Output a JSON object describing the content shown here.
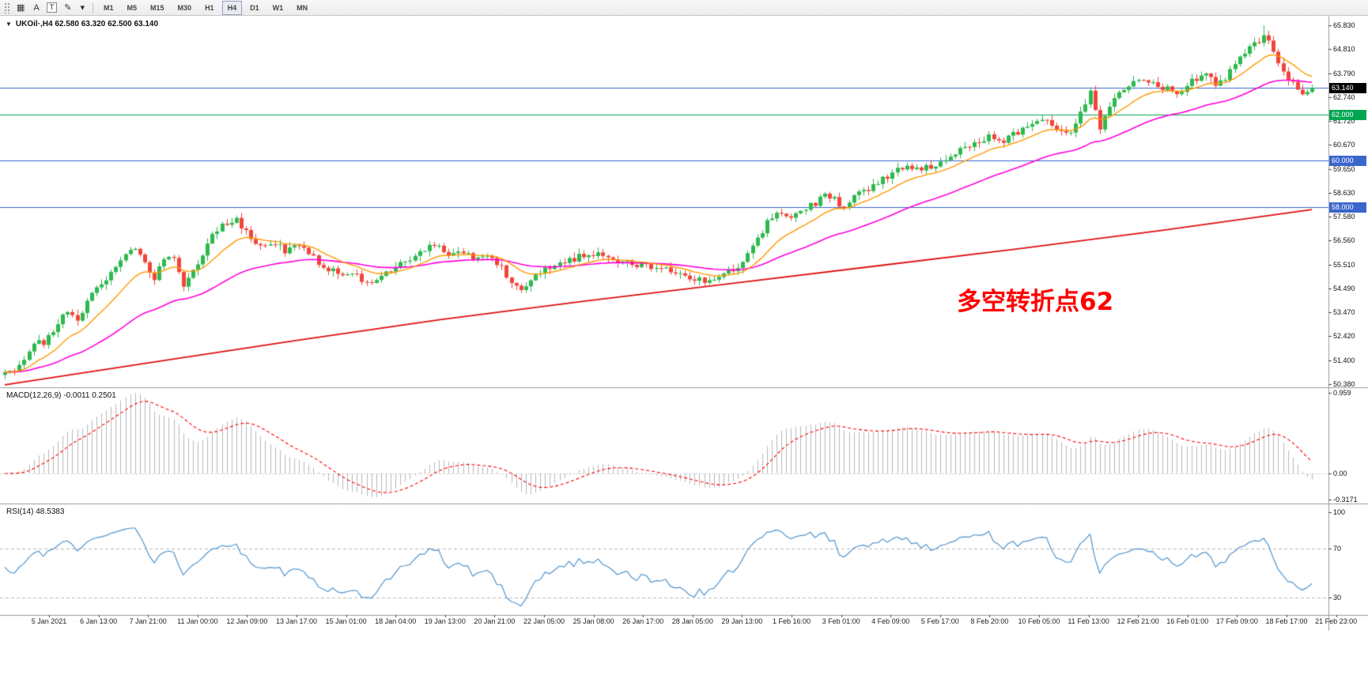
{
  "toolbar": {
    "tools": [
      {
        "name": "tile-windows-icon",
        "glyph": "▦",
        "boxed": false
      },
      {
        "name": "cursor-a-tool-icon",
        "glyph": "A",
        "boxed": false
      },
      {
        "name": "text-tool-icon",
        "glyph": "T",
        "boxed": true
      },
      {
        "name": "pencil-draw-tool-icon",
        "glyph": "✎",
        "boxed": false
      },
      {
        "name": "draw-tool-caret-icon",
        "glyph": "▾",
        "boxed": false
      }
    ],
    "timeframes": [
      "M1",
      "M5",
      "M15",
      "M30",
      "H1",
      "H4",
      "D1",
      "W1",
      "MN"
    ],
    "selected": "H4"
  },
  "main_chart": {
    "symbol_marker": "▼",
    "symbol_label": "UKOil·,H4 62.580 63.320 62.500 63.140",
    "annotation": {
      "text": "多空转折点62",
      "color": "#ff0000"
    }
  },
  "chart_data": {
    "type": "candlestick",
    "symbol": "UKOil",
    "timeframe": "H4",
    "ohlc_current": {
      "open": 62.58,
      "high": 63.32,
      "low": 62.5,
      "close": 63.14
    },
    "price_range": [
      50.38,
      65.83
    ],
    "grid": false,
    "candles_count": 272,
    "last_close": 63.14,
    "peak_index": 261,
    "peak_high": 65.83,
    "candle_colors": {
      "up": "#2eb94e",
      "down": "#f2453a"
    },
    "close_anchors": [
      [
        0,
        50.9
      ],
      [
        2,
        51.05
      ],
      [
        4,
        51.5
      ],
      [
        6,
        52.2
      ],
      [
        8,
        52.05
      ],
      [
        11,
        53.1
      ],
      [
        13,
        53.5
      ],
      [
        15,
        53.2
      ],
      [
        17,
        53.9
      ],
      [
        19,
        54.5
      ],
      [
        21,
        54.9
      ],
      [
        24,
        55.7
      ],
      [
        27,
        56.35
      ],
      [
        29,
        55.5
      ],
      [
        31,
        54.95
      ],
      [
        33,
        55.75
      ],
      [
        35,
        55.9
      ],
      [
        37,
        54.65
      ],
      [
        40,
        55.6
      ],
      [
        43,
        56.9
      ],
      [
        46,
        57.3
      ],
      [
        48,
        57.45
      ],
      [
        50,
        56.95
      ],
      [
        53,
        56.25
      ],
      [
        56,
        56.5
      ],
      [
        58,
        56.0
      ],
      [
        61,
        56.35
      ],
      [
        64,
        55.8
      ],
      [
        67,
        55.35
      ],
      [
        70,
        55.15
      ],
      [
        73,
        55.0
      ],
      [
        76,
        54.75
      ],
      [
        79,
        55.2
      ],
      [
        82,
        55.55
      ],
      [
        85,
        55.9
      ],
      [
        88,
        56.35
      ],
      [
        91,
        56.15
      ],
      [
        93,
        55.9
      ],
      [
        95,
        56.05
      ],
      [
        98,
        55.75
      ],
      [
        101,
        55.9
      ],
      [
        103,
        55.4
      ],
      [
        105,
        54.6
      ],
      [
        107,
        54.45
      ],
      [
        110,
        55.05
      ],
      [
        113,
        55.45
      ],
      [
        116,
        55.6
      ],
      [
        119,
        55.85
      ],
      [
        122,
        56.0
      ],
      [
        125,
        55.85
      ],
      [
        128,
        55.6
      ],
      [
        131,
        55.5
      ],
      [
        134,
        55.45
      ],
      [
        137,
        55.3
      ],
      [
        140,
        55.2
      ],
      [
        143,
        54.95
      ],
      [
        146,
        54.8
      ],
      [
        149,
        55.05
      ],
      [
        152,
        55.4
      ],
      [
        155,
        56.35
      ],
      [
        157,
        57.0
      ],
      [
        159,
        57.6
      ],
      [
        161,
        57.85
      ],
      [
        163,
        57.5
      ],
      [
        165,
        57.7
      ],
      [
        167,
        58.05
      ],
      [
        170,
        58.45
      ],
      [
        172,
        58.3
      ],
      [
        174,
        58.05
      ],
      [
        177,
        58.55
      ],
      [
        180,
        58.95
      ],
      [
        183,
        59.35
      ],
      [
        186,
        59.75
      ],
      [
        189,
        59.6
      ],
      [
        192,
        59.75
      ],
      [
        195,
        60.15
      ],
      [
        198,
        60.5
      ],
      [
        201,
        60.7
      ],
      [
        204,
        61.0
      ],
      [
        207,
        60.9
      ],
      [
        210,
        61.25
      ],
      [
        213,
        61.6
      ],
      [
        215,
        61.7
      ],
      [
        218,
        61.45
      ],
      [
        221,
        61.2
      ],
      [
        223,
        62.0
      ],
      [
        225,
        62.9
      ],
      [
        227,
        61.45
      ],
      [
        229,
        62.2
      ],
      [
        231,
        62.9
      ],
      [
        233,
        63.25
      ],
      [
        236,
        63.4
      ],
      [
        239,
        63.3
      ],
      [
        241,
        63.05
      ],
      [
        243,
        62.9
      ],
      [
        246,
        63.45
      ],
      [
        249,
        63.65
      ],
      [
        251,
        63.35
      ],
      [
        253,
        63.6
      ],
      [
        255,
        64.1
      ],
      [
        257,
        64.6
      ],
      [
        259,
        65.0
      ],
      [
        261,
        65.45
      ],
      [
        262,
        65.1
      ],
      [
        264,
        64.2
      ],
      [
        266,
        63.6
      ],
      [
        267,
        63.35
      ],
      [
        269,
        62.85
      ],
      [
        270,
        63.05
      ],
      [
        271,
        63.14
      ]
    ],
    "ma_fast_period": 13,
    "ma_mid_period": 42,
    "ma_fast_color": "#ff9900",
    "ma_mid_color": "#ff00dd",
    "ma_slow_color": "#e01010",
    "ma_slow_anchors": [
      [
        0,
        50.35
      ],
      [
        30,
        51.3
      ],
      [
        60,
        52.25
      ],
      [
        90,
        53.15
      ],
      [
        120,
        53.95
      ],
      [
        150,
        54.7
      ],
      [
        180,
        55.45
      ],
      [
        210,
        56.2
      ],
      [
        240,
        57.0
      ],
      [
        271,
        57.9
      ]
    ],
    "horizontal_lines": [
      {
        "price": 63.14,
        "color": "#3a66cc",
        "axis_label": "63.140",
        "axis_label_bg": "#000000"
      },
      {
        "price": 62.0,
        "color": "#00a651",
        "axis_label": "62.000",
        "axis_label_bg": "#00a651"
      },
      {
        "price": 60.0,
        "color": "#3a66cc",
        "axis_label": "60.000",
        "axis_label_bg": "#3a66cc"
      },
      {
        "price": 58.0,
        "color": "#3a66cc",
        "axis_label": "58.000",
        "axis_label_bg": "#3a66cc"
      }
    ],
    "price_axis_ticks": [
      "65.830",
      "64.810",
      "63.790",
      "62.740",
      "61.720",
      "60.670",
      "59.650",
      "58.630",
      "57.580",
      "56.560",
      "55.510",
      "54.490",
      "53.470",
      "52.420",
      "51.400",
      "50.380"
    ],
    "indicators": [
      {
        "name": "MACD",
        "params": "12,26,9",
        "values_label": "-0.0011 0.2501",
        "label_full": "MACD(12,26,9) -0.0011 0.2501",
        "axis_ticks": [
          "0.959",
          "0.00",
          "-0.3171"
        ],
        "histogram_color": "#b8b8b8",
        "signal_color": "#ff0000",
        "signal_style": "dashed"
      },
      {
        "name": "RSI",
        "params": "14",
        "values_label": "48.5383",
        "label_full": "RSI(14) 48.5383",
        "axis_ticks": [
          "100",
          "70",
          "30"
        ],
        "line_color": "#4f94cd",
        "levels": [
          70,
          30
        ]
      }
    ],
    "x_axis_dates": [
      "5 Jan 2021",
      "6 Jan 13:00",
      "7 Jan 21:00",
      "11 Jan 00:00",
      "12 Jan 09:00",
      "13 Jan 17:00",
      "15 Jan 01:00",
      "18 Jan 04:00",
      "19 Jan 13:00",
      "20 Jan 21:00",
      "22 Jan 05:00",
      "25 Jan 08:00",
      "26 Jan 17:00",
      "28 Jan 05:00",
      "29 Jan 13:00",
      "1 Feb 16:00",
      "3 Feb 01:00",
      "4 Feb 09:00",
      "5 Feb 17:00",
      "8 Feb 20:00",
      "10 Feb 05:00",
      "11 Feb 13:00",
      "12 Feb 21:00",
      "16 Feb 01:00",
      "17 Feb 09:00",
      "18 Feb 17:00",
      "21 Feb 23:00"
    ]
  }
}
